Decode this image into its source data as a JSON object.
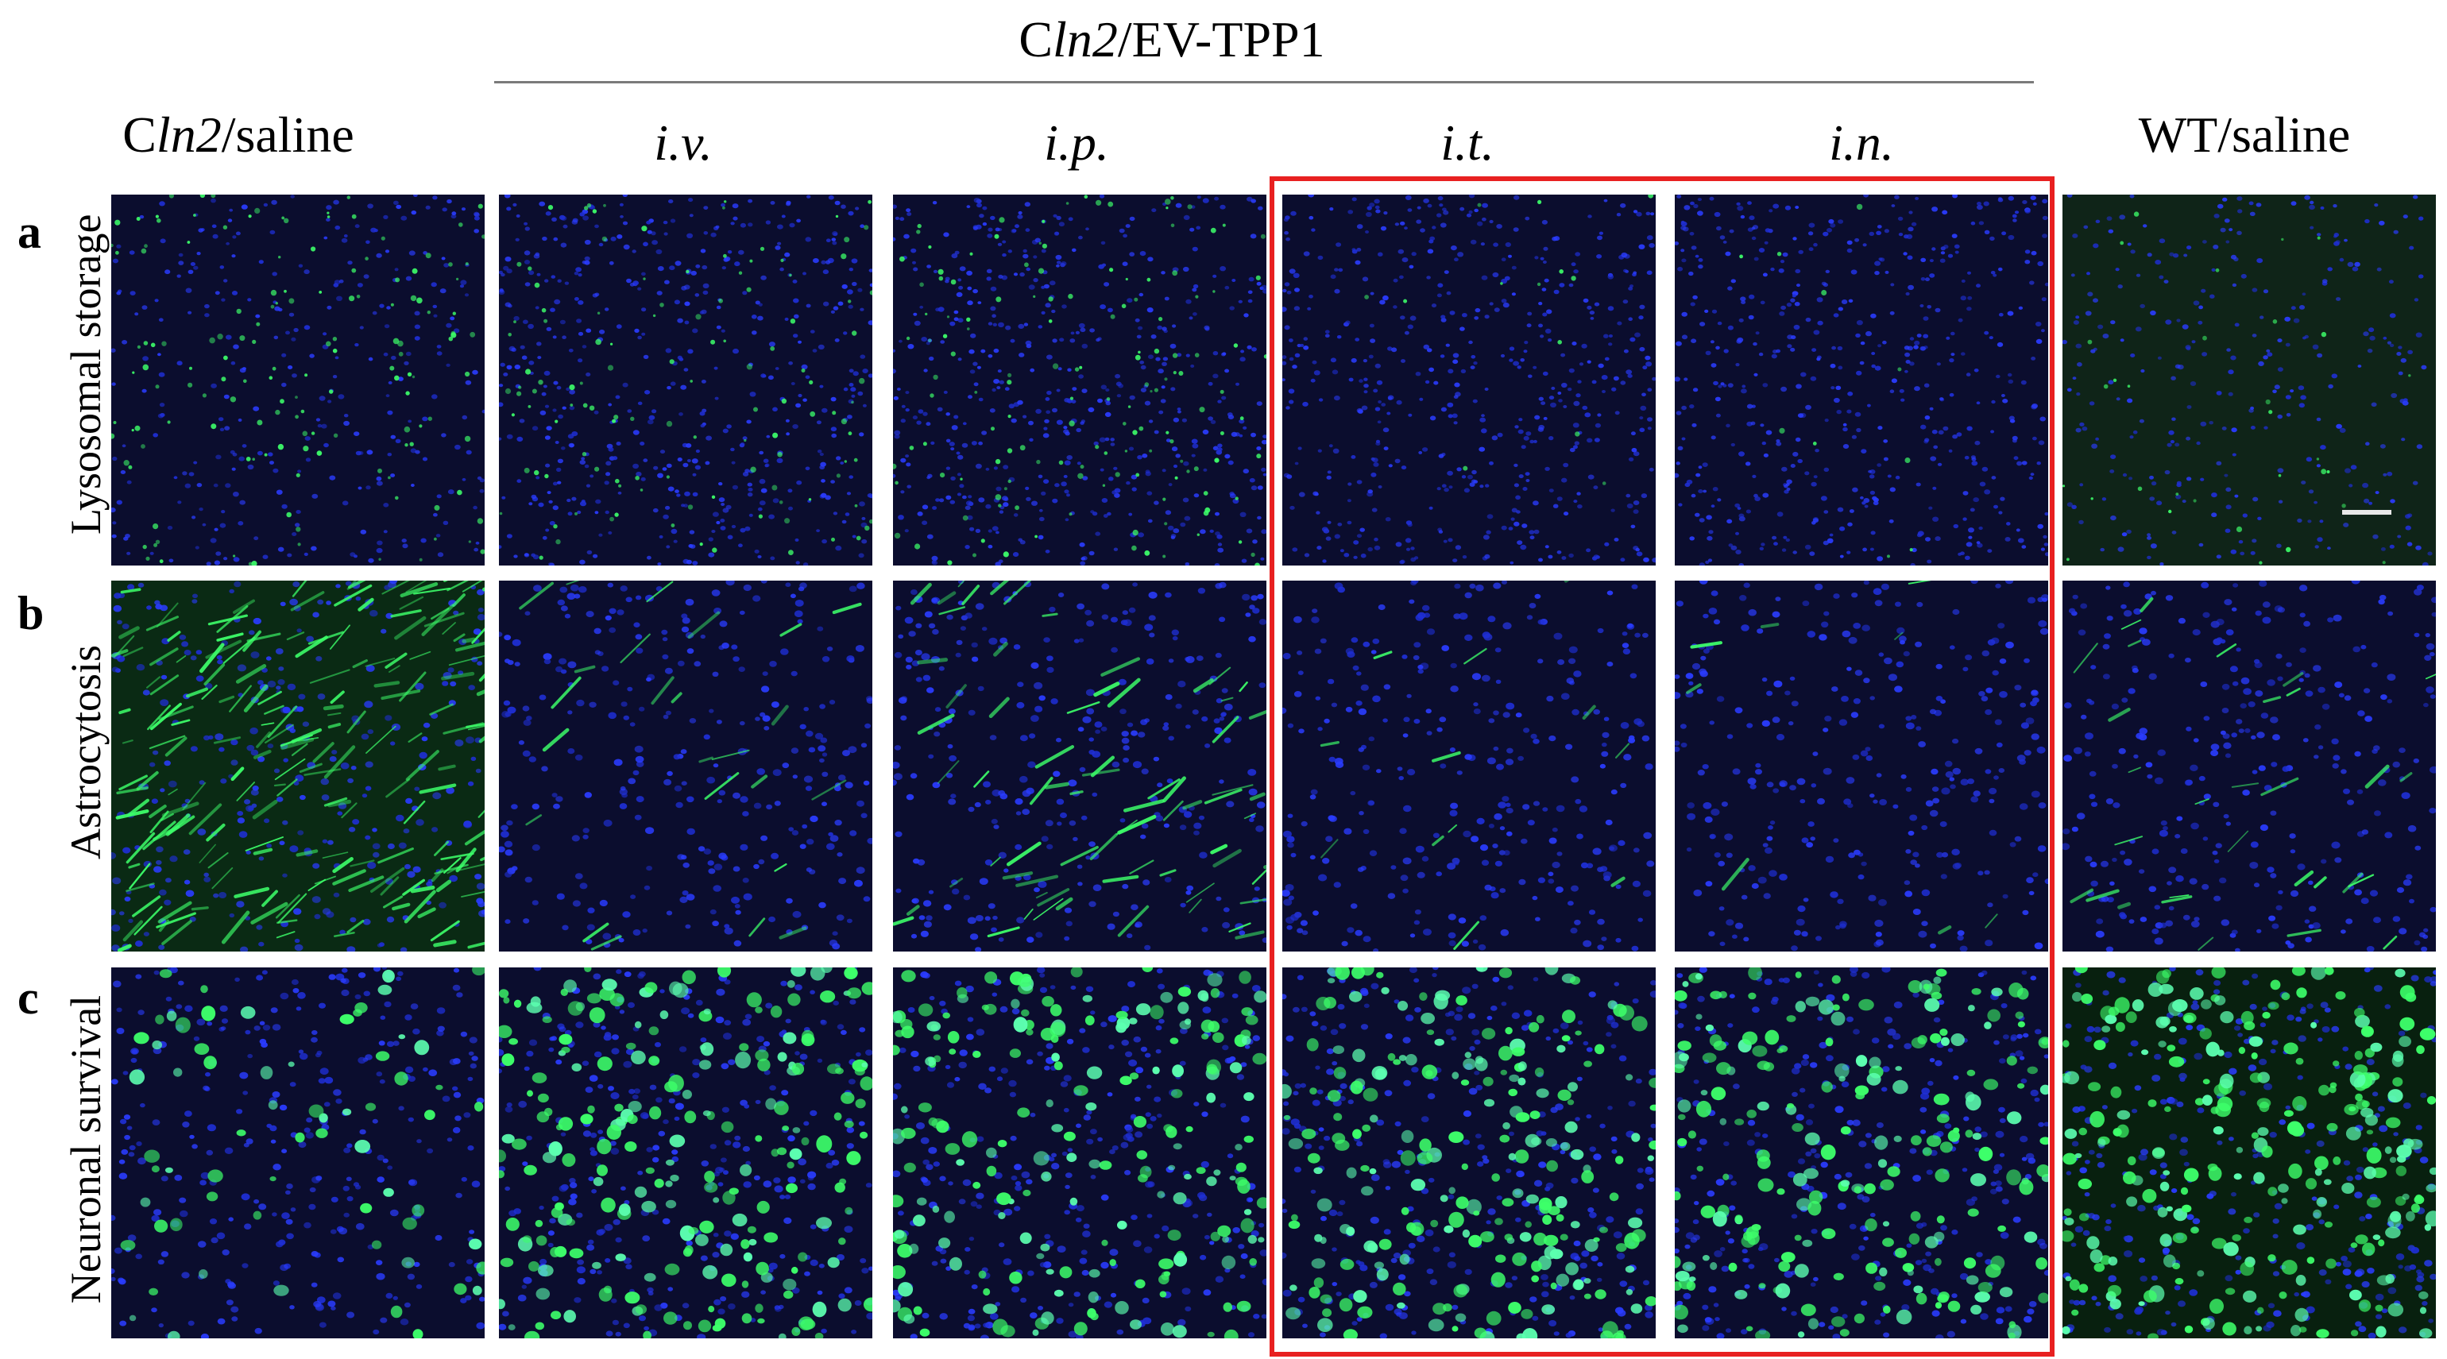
{
  "figure": {
    "group_header": {
      "prefix": "C",
      "italic": "ln2",
      "suffix": "/EV-TPP1"
    },
    "columns": [
      {
        "id": "cln2-saline",
        "prefix": "C",
        "italic": "ln2",
        "suffix": "/saline",
        "style": "mixed"
      },
      {
        "id": "iv",
        "label": "i.v.",
        "style": "italic"
      },
      {
        "id": "ip",
        "label": "i.p.",
        "style": "italic"
      },
      {
        "id": "it",
        "label": "i.t.",
        "style": "italic"
      },
      {
        "id": "in",
        "label": "i.n.",
        "style": "italic"
      },
      {
        "id": "wt-saline",
        "label": "WT/saline",
        "style": "plain"
      }
    ],
    "rows": [
      {
        "letter": "a",
        "label": "Lysosomal storage"
      },
      {
        "letter": "b",
        "label": "Astrocytosis"
      },
      {
        "letter": "c",
        "label": "Neuronal survival"
      }
    ],
    "highlight_columns": [
      "it",
      "in"
    ],
    "colors": {
      "highlight_box": "#e82020",
      "nuclei_stain": "#2a3cff",
      "marker_stain": "#3dff6a",
      "panel_background": "#090a24"
    }
  }
}
